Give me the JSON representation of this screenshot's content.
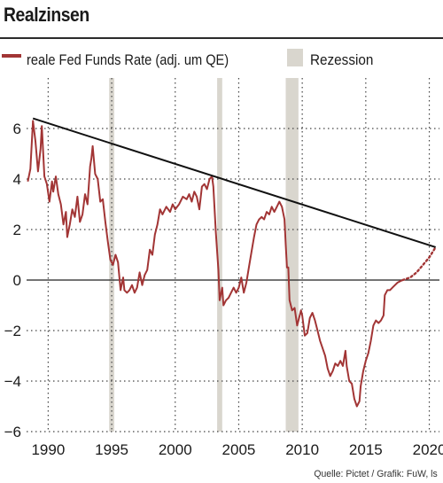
{
  "title": "Realzinsen",
  "source": "Quelle: Pictet / Grafik: FuW, ls",
  "colors": {
    "series": "#a23535",
    "trend": "#111111",
    "recession": "#d9d6ce",
    "grid": "#444444",
    "zero": "#222222"
  },
  "chart_data": {
    "type": "line",
    "title": "Realzinsen",
    "xlabel": "",
    "ylabel": "",
    "xlim": [
      1988.3,
      2020.8
    ],
    "ylim": [
      -6,
      8
    ],
    "x_ticks": [
      1990,
      1995,
      2000,
      2005,
      2010,
      2015,
      2020
    ],
    "y_ticks": [
      6,
      4,
      2,
      0,
      -2,
      -4,
      -6
    ],
    "y_tick_labels": [
      "6",
      "4",
      "2",
      "0",
      "−2",
      "−4",
      "−6"
    ],
    "grid": true,
    "legend_position": "top",
    "legend": {
      "series_label": "reale Fed Funds Rate (adj. um QE)",
      "recession_label": "Rezession"
    },
    "recessions": [
      [
        1994.8,
        1995.2
      ],
      [
        2003.3,
        2003.7
      ],
      [
        2008.7,
        2009.7
      ]
    ],
    "series": [
      {
        "name": "reale Fed Funds Rate (adj. um QE)",
        "style": "solid",
        "points": [
          [
            1988.4,
            3.9
          ],
          [
            1988.6,
            4.4
          ],
          [
            1988.8,
            6.3
          ],
          [
            1989.0,
            5.5
          ],
          [
            1989.2,
            4.3
          ],
          [
            1989.4,
            5.2
          ],
          [
            1989.5,
            6.1
          ],
          [
            1989.7,
            4.1
          ],
          [
            1989.9,
            3.8
          ],
          [
            1990.1,
            3.1
          ],
          [
            1990.3,
            3.9
          ],
          [
            1990.4,
            3.5
          ],
          [
            1990.6,
            4.1
          ],
          [
            1990.8,
            3.4
          ],
          [
            1991.0,
            3.0
          ],
          [
            1991.2,
            2.2
          ],
          [
            1991.4,
            2.7
          ],
          [
            1991.5,
            1.7
          ],
          [
            1991.7,
            2.2
          ],
          [
            1991.9,
            2.8
          ],
          [
            1992.1,
            2.5
          ],
          [
            1992.3,
            3.3
          ],
          [
            1992.5,
            2.3
          ],
          [
            1992.7,
            2.6
          ],
          [
            1992.9,
            3.4
          ],
          [
            1993.1,
            3.0
          ],
          [
            1993.3,
            4.5
          ],
          [
            1993.4,
            4.8
          ],
          [
            1993.5,
            5.3
          ],
          [
            1993.7,
            4.2
          ],
          [
            1993.9,
            4.0
          ],
          [
            1994.1,
            3.1
          ],
          [
            1994.3,
            3.2
          ],
          [
            1994.5,
            2.3
          ],
          [
            1994.7,
            1.5
          ],
          [
            1994.9,
            0.8
          ],
          [
            1995.1,
            0.6
          ],
          [
            1995.3,
            1.0
          ],
          [
            1995.5,
            0.7
          ],
          [
            1995.7,
            -0.4
          ],
          [
            1995.9,
            0.1
          ],
          [
            1996.0,
            -0.4
          ],
          [
            1996.2,
            -0.5
          ],
          [
            1996.4,
            -0.4
          ],
          [
            1996.6,
            -0.2
          ],
          [
            1996.8,
            -0.5
          ],
          [
            1997.0,
            -0.3
          ],
          [
            1997.2,
            0.3
          ],
          [
            1997.4,
            -0.2
          ],
          [
            1997.6,
            0.2
          ],
          [
            1997.8,
            0.4
          ],
          [
            1998.0,
            1.2
          ],
          [
            1998.2,
            1.0
          ],
          [
            1998.4,
            1.8
          ],
          [
            1998.6,
            2.2
          ],
          [
            1998.8,
            2.8
          ],
          [
            1999.0,
            2.6
          ],
          [
            1999.3,
            2.9
          ],
          [
            1999.6,
            2.7
          ],
          [
            1999.8,
            3.0
          ],
          [
            2000.0,
            2.8
          ],
          [
            2000.3,
            3.0
          ],
          [
            2000.6,
            3.3
          ],
          [
            2000.9,
            3.2
          ],
          [
            2001.1,
            3.4
          ],
          [
            2001.3,
            3.1
          ],
          [
            2001.5,
            3.5
          ],
          [
            2001.7,
            3.3
          ],
          [
            2001.9,
            2.8
          ],
          [
            2002.1,
            3.7
          ],
          [
            2002.3,
            3.8
          ],
          [
            2002.5,
            3.6
          ],
          [
            2002.7,
            4.0
          ],
          [
            2002.9,
            4.1
          ],
          [
            2003.0,
            3.7
          ],
          [
            2003.2,
            1.9
          ],
          [
            2003.4,
            0.4
          ],
          [
            2003.5,
            -0.8
          ],
          [
            2003.7,
            -0.3
          ],
          [
            2003.8,
            -1.0
          ],
          [
            2004.0,
            -0.8
          ],
          [
            2004.2,
            -0.7
          ],
          [
            2004.4,
            -0.5
          ],
          [
            2004.6,
            -0.3
          ],
          [
            2004.8,
            -0.5
          ],
          [
            2005.0,
            -0.3
          ],
          [
            2005.2,
            0.1
          ],
          [
            2005.4,
            -0.5
          ],
          [
            2005.6,
            -0.1
          ],
          [
            2005.8,
            0.5
          ],
          [
            2006.0,
            1.1
          ],
          [
            2006.2,
            1.7
          ],
          [
            2006.4,
            2.2
          ],
          [
            2006.6,
            2.4
          ],
          [
            2006.8,
            2.5
          ],
          [
            2007.0,
            2.4
          ],
          [
            2007.2,
            2.7
          ],
          [
            2007.4,
            2.6
          ],
          [
            2007.6,
            2.9
          ],
          [
            2007.8,
            2.7
          ],
          [
            2008.0,
            2.9
          ],
          [
            2008.2,
            3.1
          ],
          [
            2008.4,
            2.9
          ],
          [
            2008.6,
            2.4
          ],
          [
            2008.7,
            1.4
          ],
          [
            2008.8,
            0.5
          ],
          [
            2008.9,
            0.5
          ],
          [
            2009.0,
            -0.8
          ],
          [
            2009.2,
            -1.2
          ],
          [
            2009.4,
            -1.1
          ],
          [
            2009.6,
            -1.8
          ],
          [
            2009.8,
            -1.4
          ],
          [
            2009.9,
            -1.2
          ],
          [
            2010.0,
            -1.4
          ],
          [
            2010.2,
            -2.2
          ],
          [
            2010.4,
            -2.1
          ],
          [
            2010.6,
            -1.5
          ],
          [
            2010.8,
            -1.3
          ],
          [
            2011.0,
            -1.6
          ],
          [
            2011.2,
            -2.0
          ],
          [
            2011.4,
            -2.4
          ],
          [
            2011.6,
            -2.7
          ],
          [
            2011.8,
            -3.0
          ],
          [
            2012.0,
            -3.5
          ],
          [
            2012.2,
            -3.8
          ],
          [
            2012.4,
            -3.6
          ],
          [
            2012.6,
            -3.3
          ],
          [
            2012.8,
            -3.4
          ],
          [
            2013.0,
            -3.2
          ],
          [
            2013.2,
            -3.4
          ],
          [
            2013.4,
            -2.8
          ],
          [
            2013.5,
            -3.4
          ],
          [
            2013.7,
            -4.0
          ],
          [
            2013.9,
            -4.1
          ],
          [
            2014.1,
            -4.7
          ],
          [
            2014.3,
            -5.0
          ],
          [
            2014.5,
            -4.8
          ],
          [
            2014.6,
            -4.2
          ],
          [
            2014.8,
            -3.6
          ],
          [
            2015.0,
            -3.2
          ],
          [
            2015.2,
            -2.9
          ],
          [
            2015.4,
            -2.4
          ],
          [
            2015.6,
            -1.8
          ],
          [
            2015.8,
            -1.6
          ],
          [
            2016.0,
            -1.7
          ],
          [
            2016.2,
            -1.6
          ],
          [
            2016.4,
            -1.4
          ],
          [
            2016.5,
            -0.6
          ],
          [
            2016.7,
            -0.4
          ],
          [
            2016.9,
            -0.4
          ],
          [
            2017.1,
            -0.3
          ],
          [
            2017.3,
            -0.2
          ],
          [
            2017.5,
            -0.1
          ],
          [
            2017.7,
            -0.05
          ],
          [
            2017.9,
            0.0
          ]
        ]
      },
      {
        "name": "",
        "style": "dotted",
        "points": [
          [
            2017.9,
            0.0
          ],
          [
            2018.5,
            0.1
          ],
          [
            2019.0,
            0.3
          ],
          [
            2019.5,
            0.6
          ],
          [
            2020.0,
            0.9
          ],
          [
            2020.5,
            1.3
          ]
        ]
      },
      {
        "name": "",
        "style": "trend",
        "points": [
          [
            1988.8,
            6.4
          ],
          [
            2020.5,
            1.3
          ]
        ]
      }
    ]
  }
}
